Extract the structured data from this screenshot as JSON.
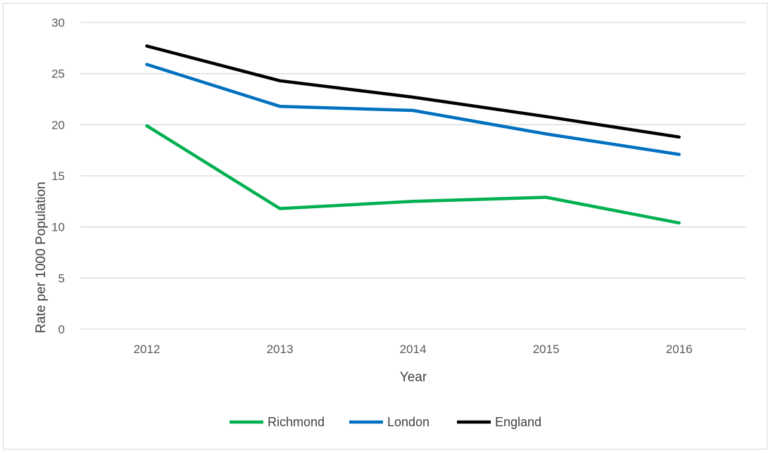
{
  "chart_data": {
    "type": "line",
    "title": "",
    "xlabel": "Year",
    "ylabel": "Rate per 1000 Population",
    "categories": [
      "2012",
      "2013",
      "2014",
      "2015",
      "2016"
    ],
    "ylim": [
      0,
      30
    ],
    "yticks": [
      "0",
      "5",
      "10",
      "15",
      "20",
      "25",
      "30"
    ],
    "grid": true,
    "legend_position": "bottom",
    "series": [
      {
        "name": "Richmond",
        "color": "#00b050",
        "values": [
          19.9,
          11.8,
          12.5,
          12.9,
          10.4
        ]
      },
      {
        "name": "London",
        "color": "#0070c0",
        "values": [
          25.9,
          21.8,
          21.4,
          19.1,
          17.1
        ]
      },
      {
        "name": "England",
        "color": "#000000",
        "values": [
          27.7,
          24.3,
          22.7,
          20.8,
          18.8
        ]
      }
    ]
  }
}
